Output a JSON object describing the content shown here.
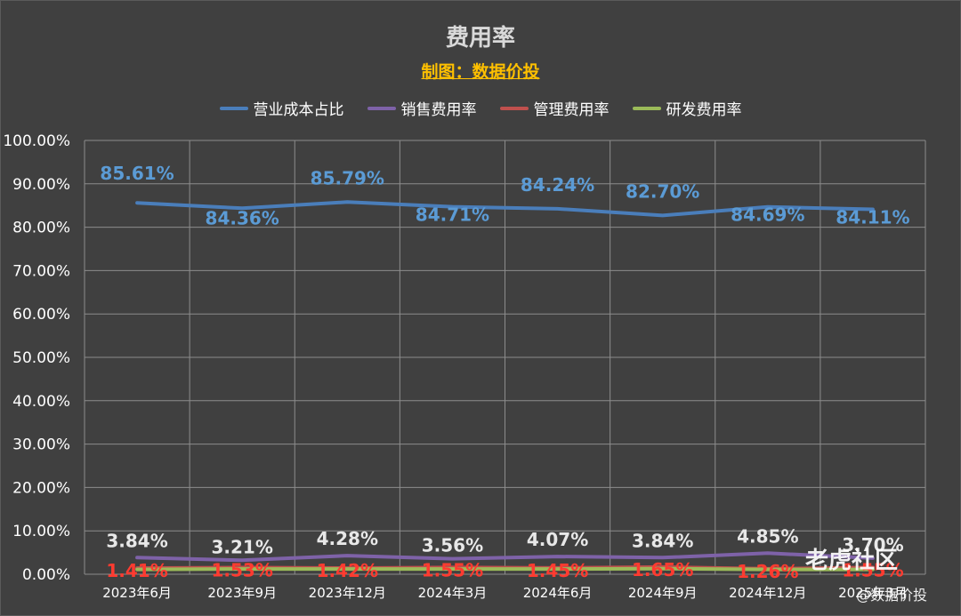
{
  "chart_data": {
    "type": "line",
    "title": "费用率",
    "subtitle": "制图：数据价投",
    "categories": [
      "2023年6月",
      "2023年9月",
      "2023年12月",
      "2024年3月",
      "2024年6月",
      "2024年9月",
      "2024年12月",
      "2025年3月"
    ],
    "series": [
      {
        "name": "营业成本占比",
        "color": "#4a7ebb",
        "label_color": "#5b9bd5",
        "values": [
          85.61,
          84.36,
          85.79,
          84.71,
          84.24,
          82.7,
          84.69,
          84.11
        ],
        "labels": [
          "85.61%",
          "84.36%",
          "85.79%",
          "84.71%",
          "84.24%",
          "82.70%",
          "84.69%",
          "84.11%"
        ]
      },
      {
        "name": "销售费用率",
        "color": "#7e62a8",
        "label_color": "#e8e8e8",
        "values": [
          3.84,
          3.21,
          4.28,
          3.56,
          4.07,
          3.84,
          4.85,
          3.7
        ],
        "labels": [
          "3.84%",
          "3.21%",
          "4.28%",
          "3.56%",
          "4.07%",
          "3.84%",
          "4.85%",
          "3.70%"
        ]
      },
      {
        "name": "管理费用率",
        "color": "#c0504d",
        "label_color": "#ff3b30",
        "values": [
          1.41,
          1.53,
          1.42,
          1.55,
          1.45,
          1.65,
          1.26,
          1.55
        ],
        "labels": [
          "1.41%",
          "1.53%",
          "1.42%",
          "1.55%",
          "1.45%",
          "1.65%",
          "1.26%",
          "1.55%"
        ]
      },
      {
        "name": "研发费用率",
        "color": "#9bbb59",
        "label_color": "#9bbb59",
        "values": [
          1.1,
          1.2,
          1.2,
          1.2,
          1.2,
          1.3,
          1.1,
          1.1
        ],
        "labels": []
      }
    ],
    "yticks": [
      "0.00%",
      "10.00%",
      "20.00%",
      "30.00%",
      "40.00%",
      "50.00%",
      "60.00%",
      "70.00%",
      "80.00%",
      "90.00%",
      "100.00%"
    ],
    "ylim": [
      0,
      100
    ],
    "grid": true,
    "legend_position": "top"
  },
  "watermark": "老虎社区",
  "watermark_author": "@数据价投"
}
